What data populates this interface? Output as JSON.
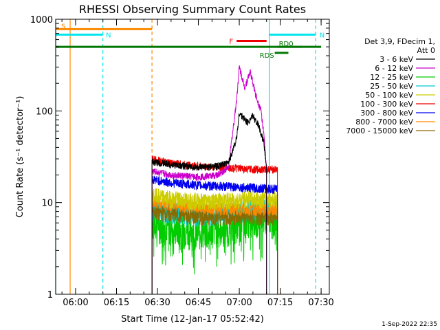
{
  "chart_data": {
    "type": "line",
    "title": "RHESSI Observing Summary Count Rates",
    "xlabel": "Start Time (12-Jan-17 05:52:42)",
    "ylabel": "Count Rate (s⁻¹ detector⁻¹)",
    "x_start": "05:52:42",
    "xlim": [
      "05:52:42",
      "07:33:00"
    ],
    "x_ticks": [
      "06:00",
      "06:15",
      "06:30",
      "06:45",
      "07:00",
      "07:15",
      "07:30"
    ],
    "y_scale": "log",
    "ylim": [
      1,
      1000
    ],
    "y_ticks": [
      "1",
      "10",
      "100",
      "1000"
    ],
    "grid": false,
    "legend_header": [
      "Det 3,9, FDecim 1,",
      "Att 0"
    ],
    "legend_placement": "right",
    "series": [
      {
        "name": "3 - 6 keV",
        "color": "#000000",
        "x": [
          "06:28",
          "06:35",
          "06:45",
          "06:52",
          "06:56",
          "06:59",
          "07:00",
          "07:03",
          "07:05",
          "07:07",
          "07:09",
          "07:10"
        ],
        "values": [
          28,
          26,
          24,
          25,
          27,
          50,
          95,
          75,
          88,
          70,
          45,
          24
        ]
      },
      {
        "name": "6 - 12 keV",
        "color": "#cc00cc",
        "x": [
          "06:28",
          "06:35",
          "06:45",
          "06:52",
          "06:56",
          "06:59",
          "07:00",
          "07:02",
          "07:04",
          "07:06",
          "07:08",
          "07:09",
          "07:10"
        ],
        "values": [
          22,
          20,
          19,
          20,
          24,
          130,
          300,
          180,
          270,
          150,
          100,
          55,
          22
        ]
      },
      {
        "name": "12 - 25 keV",
        "color": "#00cc00",
        "x": [
          "06:28",
          "06:35",
          "06:45",
          "06:55",
          "07:05",
          "07:14"
        ],
        "values": [
          6.5,
          5.5,
          5.0,
          5.5,
          7.0,
          7.0
        ]
      },
      {
        "name": "25 - 50 keV",
        "color": "#00cccc",
        "x": [
          "06:28",
          "06:35",
          "06:45",
          "06:55",
          "07:05",
          "07:14"
        ],
        "values": [
          8.5,
          8.0,
          7.5,
          8.0,
          8.5,
          8.5
        ]
      },
      {
        "name": "50 - 100 keV",
        "color": "#cccc00",
        "x": [
          "06:28",
          "06:35",
          "06:45",
          "06:55",
          "07:05",
          "07:14"
        ],
        "values": [
          12,
          11,
          10.5,
          10.5,
          11,
          11
        ]
      },
      {
        "name": "100 - 300 keV",
        "color": "#ee0000",
        "x": [
          "06:28",
          "06:35",
          "06:45",
          "06:55",
          "07:05",
          "07:14"
        ],
        "values": [
          30,
          27,
          25,
          24,
          23,
          23
        ]
      },
      {
        "name": "300 - 800 keV",
        "color": "#0000ee",
        "x": [
          "06:28",
          "06:35",
          "06:45",
          "06:55",
          "07:05",
          "07:14"
        ],
        "values": [
          18,
          16.5,
          15.5,
          15,
          14.5,
          14
        ]
      },
      {
        "name": "800 - 7000 keV",
        "color": "#ff8800",
        "x": [
          "06:28",
          "06:35",
          "06:45",
          "06:55",
          "07:05",
          "07:14"
        ],
        "values": [
          10.5,
          9.5,
          9.0,
          8.5,
          8.5,
          8.5
        ]
      },
      {
        "name": "7000 - 15000 keV",
        "color": "#8b6b00",
        "x": [
          "06:28",
          "06:35",
          "06:45",
          "06:55",
          "07:05",
          "07:14"
        ],
        "values": [
          8.0,
          7.5,
          7.0,
          7.0,
          7.0,
          7.0
        ]
      }
    ],
    "flags": [
      {
        "label": "S",
        "color": "#ff8800",
        "level": 780,
        "x": [
          "05:52:42",
          "06:28"
        ]
      },
      {
        "label": "N",
        "color": "#00e5ee",
        "level": 680,
        "x": [
          "05:52:42",
          "06:10"
        ]
      },
      {
        "label": "N",
        "color": "#00e5ee",
        "level": 680,
        "x": [
          "07:11",
          "07:28"
        ]
      },
      {
        "label": "",
        "color": "#007700",
        "level": 500,
        "x": [
          "05:52:42",
          "07:30"
        ]
      },
      {
        "label": "F",
        "color": "#ee0000",
        "level": 580,
        "x": [
          "06:59",
          "07:10"
        ]
      },
      {
        "label": "RD0",
        "color": "#007700",
        "level": 500,
        "x": [
          "07:14",
          "07:23"
        ]
      },
      {
        "label": "RDS",
        "color": "#007700",
        "level": 430,
        "x": [
          "07:13",
          "07:18"
        ]
      }
    ],
    "vertical_lines": [
      {
        "x": "05:52:42",
        "color": "#00e5ee",
        "style": "solid"
      },
      {
        "x": "05:58",
        "color": "#ff8800",
        "style": "solid"
      },
      {
        "x": "06:10",
        "color": "#00e5ee",
        "style": "dashed"
      },
      {
        "x": "06:28",
        "color": "#ff8800",
        "style": "dashed"
      },
      {
        "x": "07:11",
        "color": "#00e5ee",
        "style": "solid"
      },
      {
        "x": "07:28",
        "color": "#00e5ee",
        "style": "dashed"
      }
    ]
  },
  "timestamp": "1-Sep-2022 22:35"
}
